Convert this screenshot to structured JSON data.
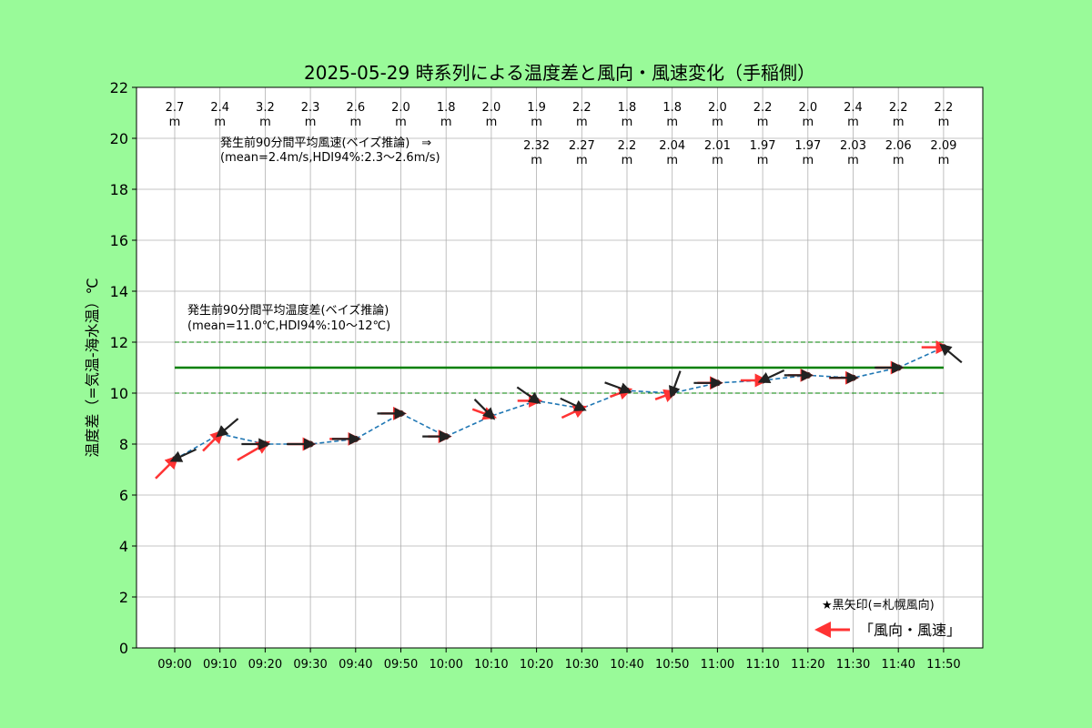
{
  "chart_data": {
    "type": "line",
    "title": "2025-05-29 時系列による温度差と風向・風速変化（手稲側）",
    "xlabel": "",
    "ylabel": "温度差（=気温-海水温）℃",
    "ylim": [
      0,
      22
    ],
    "yticks": [
      0,
      2,
      4,
      6,
      8,
      10,
      12,
      14,
      16,
      18,
      20,
      22
    ],
    "grid": true,
    "categories": [
      "09:00",
      "09:10",
      "09:20",
      "09:30",
      "09:40",
      "09:50",
      "10:00",
      "10:10",
      "10:20",
      "10:30",
      "10:40",
      "10:50",
      "11:00",
      "11:10",
      "11:20",
      "11:30",
      "11:40",
      "11:50"
    ],
    "series": [
      {
        "name": "",
        "color": "#1f77b4",
        "values": [
          7.4,
          8.4,
          8.0,
          8.0,
          8.2,
          9.2,
          8.3,
          9.1,
          9.7,
          9.4,
          10.1,
          10.0,
          10.4,
          10.5,
          10.7,
          10.6,
          11.0,
          11.8
        ]
      }
    ],
    "wind_speed_labels": [
      "2.7",
      "2.4",
      "3.2",
      "2.3",
      "2.6",
      "2.0",
      "1.8",
      "2.0",
      "1.9",
      "2.2",
      "1.8",
      "1.8",
      "2.0",
      "2.2",
      "2.0",
      "2.4",
      "2.2",
      "2.2"
    ],
    "wind_speed_unit": "m",
    "rolling_mean_labels": [
      "",
      "",
      "",
      "",
      "",
      "",
      "",
      "",
      "2.32",
      "2.27",
      "2.2",
      "2.04",
      "2.01",
      "1.97",
      "1.97",
      "2.03",
      "2.06",
      "2.09"
    ],
    "red_arrow_dir_deg": [
      135,
      135,
      150,
      180,
      180,
      180,
      180,
      200,
      180,
      155,
      160,
      160,
      180,
      180,
      180,
      180,
      180,
      180
    ],
    "red_arrow_speed": [
      2.7,
      2.4,
      3.2,
      2.3,
      2.6,
      2.0,
      1.8,
      2.0,
      1.9,
      2.2,
      1.8,
      1.8,
      2.0,
      2.2,
      2.0,
      2.4,
      2.2,
      2.2
    ],
    "black_arrow_dir_deg": [
      335,
      320,
      180,
      180,
      180,
      180,
      180,
      225,
      215,
      205,
      200,
      290,
      180,
      335,
      180,
      180,
      180,
      40
    ],
    "reference_lines": {
      "mean": 11.0,
      "hdi_low": 10.0,
      "hdi_high": 12.0,
      "mean_color": "#008000",
      "hdi_color": "#008000"
    },
    "annotations": {
      "wind_line1": "発生前90分間平均風速(ベイズ推論)　⇒",
      "wind_line2": "(mean=2.4m/s,HDI94%:2.3～2.6m/s)",
      "temp_line1": "発生前90分間平均温度差(ベイズ推論)",
      "temp_line2": "(mean=11.0℃,HDI94%:10～12℃)",
      "legend_note": "★黒矢印(=札幌風向)",
      "legend_label": "「風向・風速」"
    },
    "legend_position": "lower-right",
    "colors": {
      "background": "#99fa99",
      "plot_bg": "#ffffff",
      "grid": "#b0b0b0",
      "red_arrow": "#ff3333",
      "black_arrow": "#222222",
      "marker": "#000000"
    }
  }
}
